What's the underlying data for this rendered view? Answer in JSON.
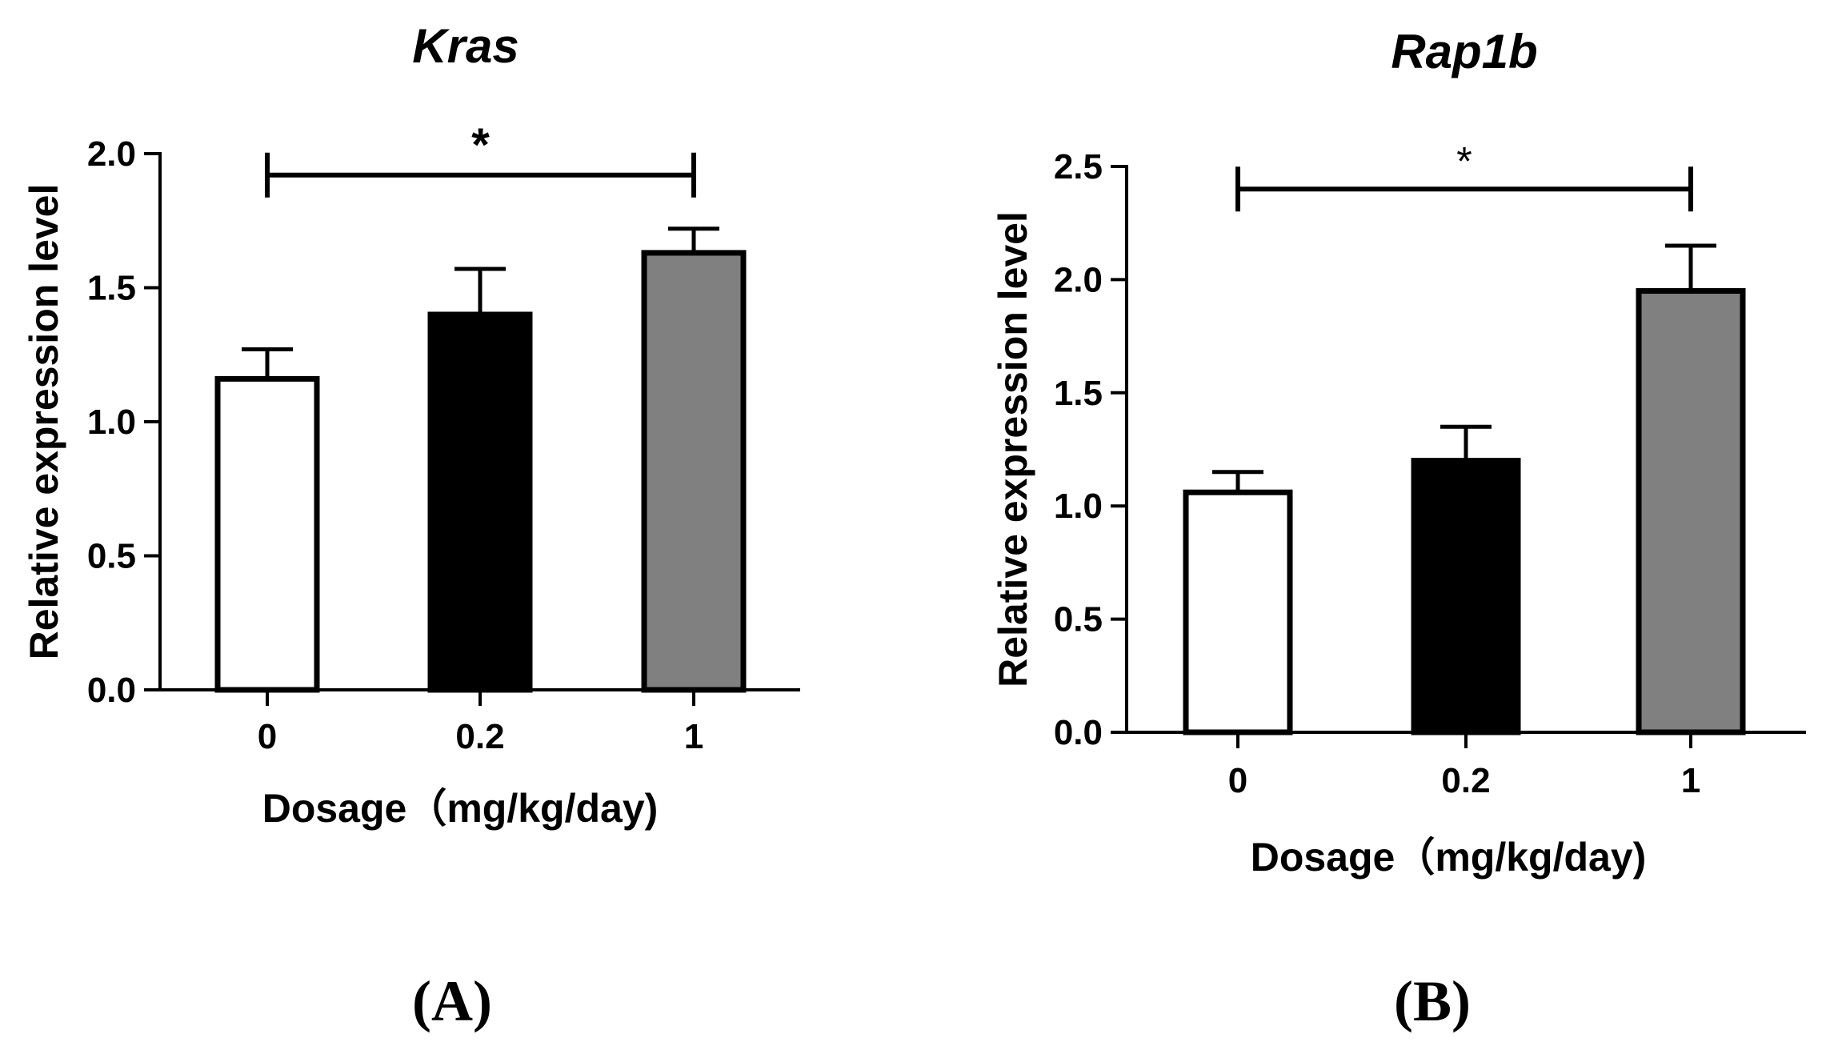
{
  "chart_data": [
    {
      "panel": "(A)",
      "type": "bar",
      "title": "Kras",
      "xlabel": "Dosage（mg/kg/day)",
      "ylabel": "Relative expression level",
      "categories": [
        "0",
        "0.2",
        "1"
      ],
      "values": [
        1.16,
        1.4,
        1.63
      ],
      "errors": [
        0.11,
        0.17,
        0.09
      ],
      "bar_colors": [
        "#ffffff",
        "#000000",
        "#808080"
      ],
      "ylim": [
        0,
        2.0
      ],
      "yticks": [
        "0.0",
        "0.5",
        "1.0",
        "1.5",
        "2.0"
      ],
      "significance": {
        "label": "*",
        "from": "0",
        "to": "1",
        "y": 1.92
      }
    },
    {
      "panel": "(B)",
      "type": "bar",
      "title": "Rap1b",
      "xlabel": "Dosage（mg/kg/day)",
      "ylabel": "Relative expression level",
      "categories": [
        "0",
        "0.2",
        "1"
      ],
      "values": [
        1.06,
        1.2,
        1.95
      ],
      "errors": [
        0.09,
        0.15,
        0.2
      ],
      "bar_colors": [
        "#ffffff",
        "#000000",
        "#808080"
      ],
      "ylim": [
        0,
        2.5
      ],
      "yticks": [
        "0.0",
        "0.5",
        "1.0",
        "1.5",
        "2.0",
        "2.5"
      ],
      "significance": {
        "label": "*",
        "from": "0",
        "to": "1",
        "y": 2.4
      }
    }
  ]
}
